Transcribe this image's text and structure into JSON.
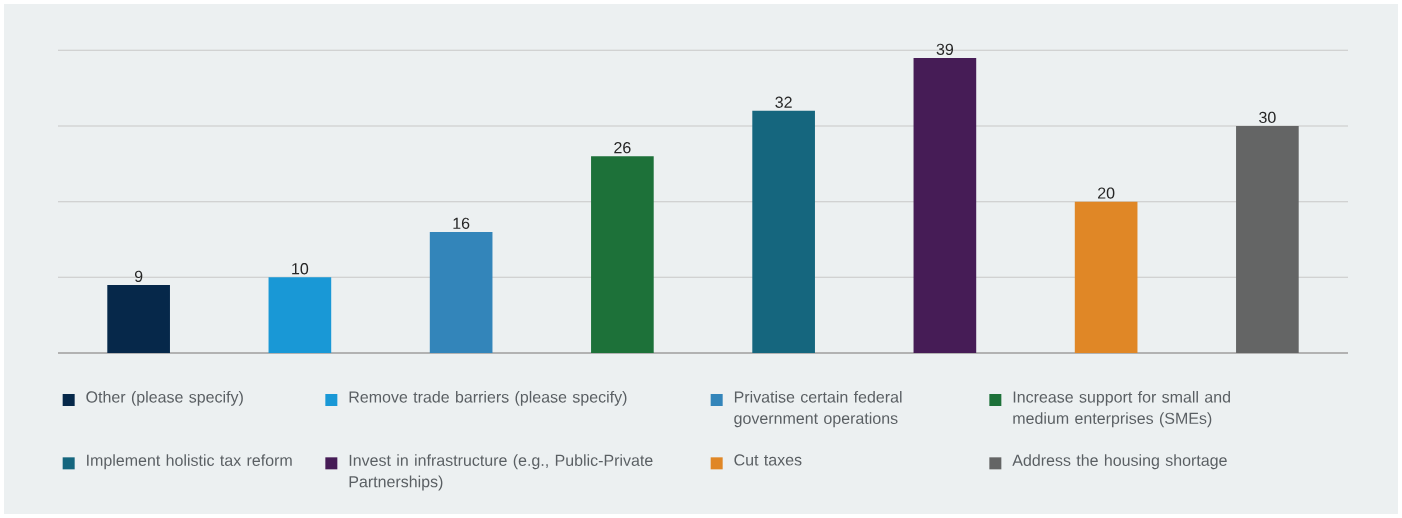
{
  "chart_data": {
    "type": "bar",
    "stacked": true,
    "categories": [
      null,
      null,
      null,
      null,
      null,
      null,
      null,
      null
    ],
    "series": [
      {
        "name": "Other (please specify)",
        "color": "#06284a",
        "values": [
          9,
          null,
          null,
          null,
          null,
          null,
          null,
          null
        ]
      },
      {
        "name": "Remove trade barriers (please specify)",
        "color": "#1998d6",
        "values": [
          null,
          10,
          null,
          null,
          null,
          null,
          null,
          null
        ]
      },
      {
        "name": "Privatise certain federal government operations",
        "color": "#3385ba",
        "values": [
          null,
          null,
          16,
          null,
          null,
          null,
          null,
          null
        ]
      },
      {
        "name": "Increase support for small and medium enterprises (SMEs)",
        "color": "#1d7139",
        "values": [
          null,
          null,
          null,
          26,
          null,
          null,
          null,
          null
        ]
      },
      {
        "name": "Implement holistic tax reform",
        "color": "#15667e",
        "values": [
          null,
          null,
          null,
          null,
          32,
          null,
          null,
          null
        ]
      },
      {
        "name": "Invest in infrastructure (e.g., Public-Private Partnerships)",
        "color": "#461c56",
        "values": [
          null,
          null,
          null,
          null,
          null,
          39,
          null,
          null
        ]
      },
      {
        "name": "Cut taxes",
        "color": "#e08726",
        "values": [
          null,
          null,
          null,
          null,
          null,
          null,
          20,
          null
        ]
      },
      {
        "name": "Address the housing shortage",
        "color": "#646565",
        "values": [
          null,
          null,
          null,
          null,
          null,
          null,
          null,
          30
        ]
      }
    ],
    "ylim": [
      0,
      40
    ],
    "yticks": [
      {
        "value": 0,
        "label": null
      },
      {
        "value": 10,
        "label": null
      },
      {
        "value": 20,
        "label": null
      },
      {
        "value": 30,
        "label": null
      },
      {
        "value": 40,
        "label": null
      }
    ],
    "grid": "y",
    "legend": "bottom",
    "tick_labels": false,
    "data_labels": true
  }
}
